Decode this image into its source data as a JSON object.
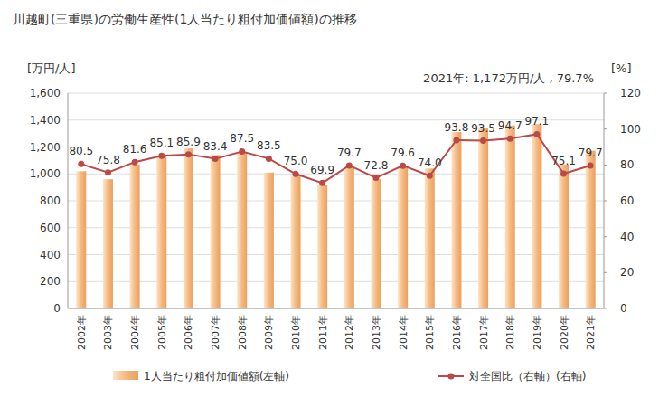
{
  "chart_data": {
    "type": "bar",
    "title": "川越町(三重県)の労働生産性(1人当たり粗付加価値額)の推移",
    "y_label": "[万円/人]",
    "y2_label": "[%]",
    "annotation": "2021年: 1,172万円/人 , 79.7%",
    "categories": [
      "2002年",
      "2003年",
      "2004年",
      "2005年",
      "2006年",
      "2007年",
      "2008年",
      "2009年",
      "2010年",
      "2011年",
      "2012年",
      "2013年",
      "2014年",
      "2015年",
      "2016年",
      "2017年",
      "2018年",
      "2019年",
      "2020年",
      "2021年"
    ],
    "series": [
      {
        "name": "1人当たり粗付加価値額(左軸)",
        "type": "bar",
        "color": "#f5b97f",
        "values": [
          1020,
          960,
          1070,
          1130,
          1190,
          1140,
          1160,
          1010,
          990,
          920,
          1050,
          960,
          1050,
          1040,
          1310,
          1340,
          1360,
          1370,
          1070,
          1172
        ]
      },
      {
        "name": "対全国比（右軸）(右軸)",
        "type": "line",
        "color": "#b94a48",
        "marker": "circle",
        "axis": "y2",
        "data_labels": true,
        "values": [
          80.5,
          75.8,
          81.6,
          85.1,
          85.9,
          83.4,
          87.5,
          83.5,
          75.0,
          69.9,
          79.7,
          72.8,
          79.6,
          74.0,
          93.8,
          93.5,
          94.7,
          97.1,
          75.1,
          79.7
        ],
        "value_labels": [
          "80.5",
          "75.8",
          "81.6",
          "85.1",
          "85.9",
          "83.4",
          "87.5",
          "83.5",
          "75.0",
          "69.9",
          "79.7",
          "72.8",
          "79.6",
          "74.0",
          "93.8",
          "93.5",
          "94.7",
          "97.1",
          "75.1",
          "79.7"
        ]
      }
    ],
    "ylim": [
      0,
      1600
    ],
    "yticks": [
      0,
      200,
      400,
      600,
      800,
      {
        "value": 1000,
        "label": "1,000"
      },
      {
        "value": 1200,
        "label": "1,200"
      },
      {
        "value": 1400,
        "label": "1,400"
      },
      {
        "value": 1600,
        "label": "1,600"
      }
    ],
    "y2lim": [
      0,
      120
    ],
    "y2ticks": [
      0,
      20,
      40,
      60,
      80,
      100,
      120
    ],
    "grid": true,
    "legend": "bottom"
  }
}
